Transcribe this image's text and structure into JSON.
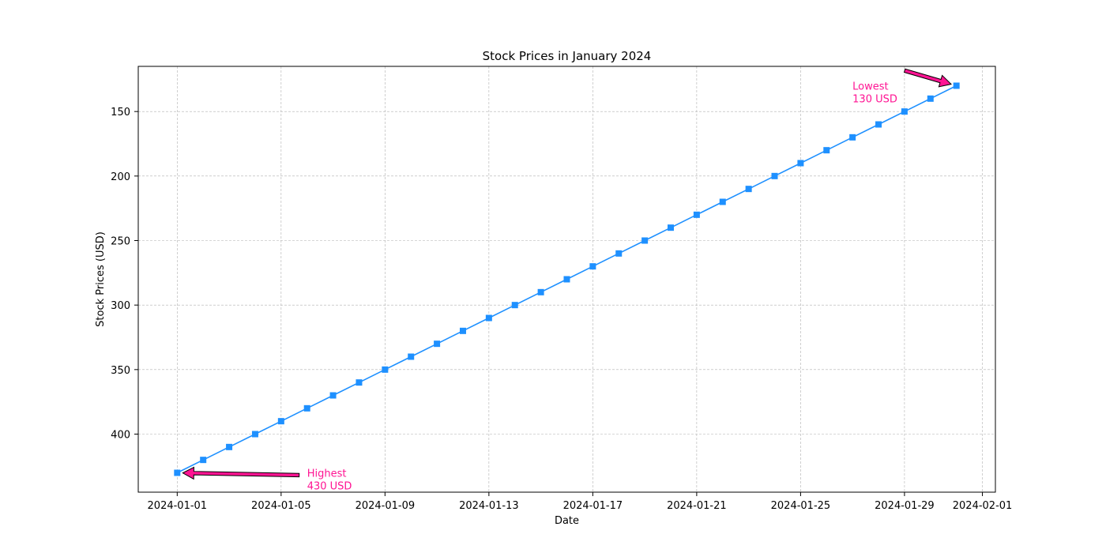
{
  "chart_data": {
    "type": "line",
    "title": "Stock Prices in January 2024",
    "xlabel": "Date",
    "ylabel": "Stock Prices (USD)",
    "x": [
      "2024-01-01",
      "2024-01-02",
      "2024-01-03",
      "2024-01-04",
      "2024-01-05",
      "2024-01-06",
      "2024-01-07",
      "2024-01-08",
      "2024-01-09",
      "2024-01-10",
      "2024-01-11",
      "2024-01-12",
      "2024-01-13",
      "2024-01-14",
      "2024-01-15",
      "2024-01-16",
      "2024-01-17",
      "2024-01-18",
      "2024-01-19",
      "2024-01-20",
      "2024-01-21",
      "2024-01-22",
      "2024-01-23",
      "2024-01-24",
      "2024-01-25",
      "2024-01-26",
      "2024-01-27",
      "2024-01-28",
      "2024-01-29",
      "2024-01-30",
      "2024-01-31"
    ],
    "series": [
      {
        "values": [
          430,
          420,
          410,
          400,
          390,
          380,
          370,
          360,
          350,
          340,
          330,
          320,
          310,
          300,
          290,
          280,
          270,
          260,
          250,
          240,
          230,
          220,
          210,
          200,
          190,
          180,
          170,
          160,
          150,
          140,
          130
        ],
        "color": "#1e90ff",
        "marker": "square"
      }
    ],
    "x_ticks": [
      "2024-01-01",
      "2024-01-05",
      "2024-01-09",
      "2024-01-13",
      "2024-01-17",
      "2024-01-21",
      "2024-01-25",
      "2024-01-29",
      "2024-02-01"
    ],
    "y_ticks": [
      150,
      200,
      250,
      300,
      350,
      400
    ],
    "xlim": [
      "2023-12-30T12:00",
      "2024-02-01T12:00"
    ],
    "ylim": [
      445,
      115
    ],
    "y_inverted": true,
    "grid": true,
    "annotations": [
      {
        "name": "highest",
        "lines": [
          "Highest",
          "430 USD"
        ],
        "point_x": "2024-01-01",
        "point_y": 430,
        "text_x": "2024-01-06",
        "text_y": 433,
        "color": "#ff1493"
      },
      {
        "name": "lowest",
        "lines": [
          "Lowest",
          "130 USD"
        ],
        "point_x": "2024-01-31",
        "point_y": 130,
        "text_x": "2024-01-27",
        "text_y": 133,
        "color": "#ff1493"
      }
    ]
  }
}
